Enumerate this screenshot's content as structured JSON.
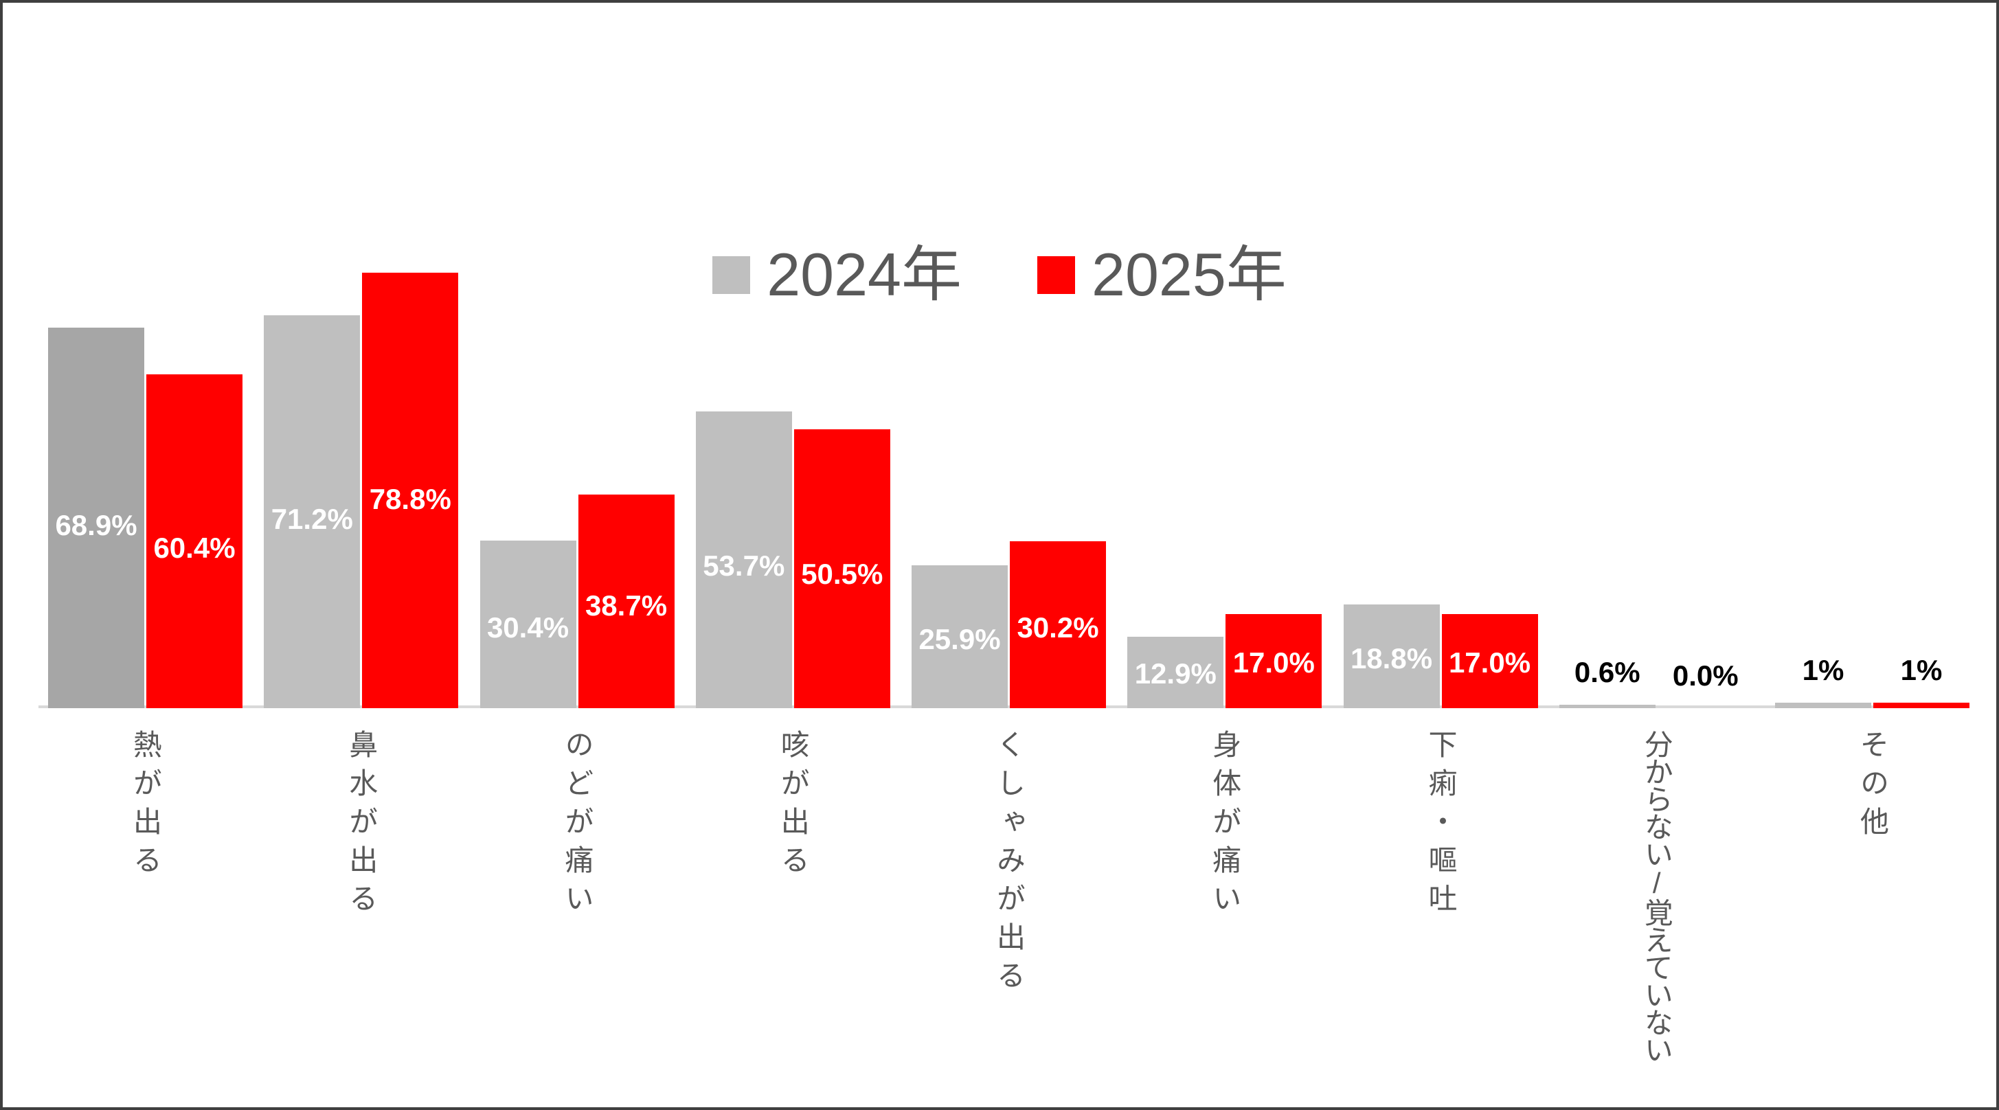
{
  "legend": {
    "items": [
      {
        "label": "2024年",
        "color": "#bfbfbf"
      },
      {
        "label": "2025年",
        "color": "#ff0000"
      }
    ]
  },
  "chart_data": {
    "type": "bar",
    "title": "",
    "categories": [
      "熱が出る",
      "鼻水が出る",
      "のどが痛い",
      "咳が出る",
      "くしゃみが出る",
      "身体が痛い",
      "下痢・嘔吐",
      "分からない/覚えていない",
      "その他"
    ],
    "series": [
      {
        "name": "2024年",
        "color": "#bfbfbf",
        "first_bar_color": "#a6a6a6",
        "values": [
          68.9,
          71.2,
          30.4,
          53.7,
          25.9,
          12.9,
          18.8,
          0.6,
          1
        ],
        "labels": [
          "68.9%",
          "71.2%",
          "30.4%",
          "53.7%",
          "25.9%",
          "12.9%",
          "18.8%",
          "0.6%",
          "1%"
        ]
      },
      {
        "name": "2025年",
        "color": "#ff0000",
        "values": [
          60.4,
          78.8,
          38.7,
          50.5,
          30.2,
          17.0,
          17.0,
          0.0,
          1
        ],
        "labels": [
          "60.4%",
          "78.8%",
          "38.7%",
          "50.5%",
          "30.2%",
          "17.0%",
          "17.0%",
          "0.0%",
          "1%"
        ]
      }
    ],
    "ylim": [
      0,
      100
    ],
    "grid": false,
    "value_axis_visible": false,
    "legend_position": "top-center",
    "label_position": "inside-center",
    "label_color_on_bar": "#ffffff",
    "label_color_small_bars": "#000000",
    "category_text_color": "#595959",
    "axis_line_color": "#d9d9d9"
  },
  "frame": {
    "border_color": "#3f3f3f",
    "background": "#ffffff"
  }
}
